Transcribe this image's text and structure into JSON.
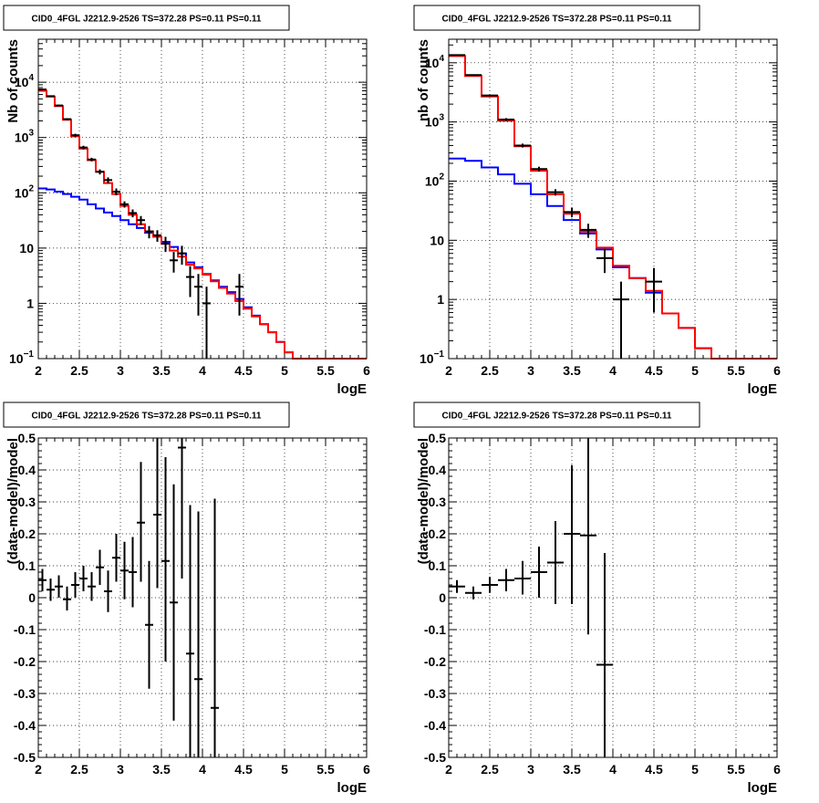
{
  "chart_data": [
    {
      "type": "step-line+errorbar",
      "title": "CID0_4FGL J2212.9-2526 TS=372.28 PS=0.11 PS=0.11",
      "xlabel": "logE",
      "ylabel": "Nb of counts",
      "xlim": [
        2,
        6
      ],
      "ylim": [
        0.1,
        60000
      ],
      "yscale": "log",
      "grid": true,
      "xticks": [
        "2",
        "2.5",
        "3",
        "3.5",
        "4",
        "4.5",
        "5",
        "5.5",
        "6"
      ],
      "yticks": [
        {
          "v": 0.1,
          "label": "10",
          "sup": "−1"
        },
        {
          "v": 1,
          "label": "1"
        },
        {
          "v": 10,
          "label": "10"
        },
        {
          "v": 100,
          "label": "10",
          "sup": "2"
        },
        {
          "v": 1000,
          "label": "10",
          "sup": "3"
        },
        {
          "v": 10000,
          "label": "10",
          "sup": "4"
        }
      ],
      "series": [
        {
          "kind": "step",
          "color": "#0000ff",
          "edges": [
            2.0,
            2.1,
            2.2,
            2.3,
            2.4,
            2.5,
            2.6,
            2.7,
            2.8,
            2.9,
            3.0,
            3.1,
            3.2,
            3.3,
            3.4,
            3.5,
            3.6,
            3.7,
            3.8,
            3.9,
            4.0,
            4.1,
            4.2,
            4.3,
            4.4,
            4.5,
            4.6,
            4.7,
            4.8,
            4.9,
            5.0,
            5.1,
            6.0
          ],
          "values": [
            120,
            115,
            105,
            95,
            85,
            75,
            62,
            52,
            44,
            38,
            32,
            27,
            23,
            19,
            16,
            13,
            10.5,
            8,
            5.5,
            4.5,
            3.4,
            2.6,
            2.0,
            1.6,
            1.2,
            0.85,
            0.6,
            0.42,
            0.3,
            0.2,
            0.13,
            0.1
          ]
        },
        {
          "kind": "step",
          "color": "#ff0000",
          "edges": [
            2.0,
            2.1,
            2.2,
            2.3,
            2.4,
            2.5,
            2.6,
            2.7,
            2.8,
            2.9,
            3.0,
            3.1,
            3.2,
            3.3,
            3.4,
            3.5,
            3.6,
            3.7,
            3.8,
            3.9,
            4.0,
            4.1,
            4.2,
            4.3,
            4.4,
            4.5,
            4.6,
            4.7,
            4.8,
            4.9,
            5.0,
            5.1,
            6.0
          ],
          "values": [
            7000,
            5500,
            3700,
            2100,
            1050,
            630,
            390,
            240,
            150,
            95,
            58,
            40,
            27,
            20,
            16,
            12,
            9,
            7,
            5,
            4.3,
            3.3,
            2.5,
            1.9,
            1.5,
            1.1,
            0.8,
            0.58,
            0.42,
            0.3,
            0.2,
            0.13,
            0.1
          ]
        },
        {
          "kind": "errorbar",
          "color": "#000000",
          "points": [
            {
              "x": 2.05,
              "y": 7400,
              "xe": 0.05,
              "lo": 7250,
              "hi": 7550
            },
            {
              "x": 2.15,
              "y": 5600,
              "xe": 0.05,
              "lo": 5450,
              "hi": 5750
            },
            {
              "x": 2.25,
              "y": 3800,
              "xe": 0.05,
              "lo": 3680,
              "hi": 3920
            },
            {
              "x": 2.35,
              "y": 2150,
              "xe": 0.05,
              "lo": 2060,
              "hi": 2240
            },
            {
              "x": 2.45,
              "y": 1100,
              "xe": 0.05,
              "lo": 1030,
              "hi": 1170
            },
            {
              "x": 2.55,
              "y": 660,
              "xe": 0.05,
              "lo": 610,
              "hi": 710
            },
            {
              "x": 2.65,
              "y": 400,
              "xe": 0.05,
              "lo": 370,
              "hi": 430
            },
            {
              "x": 2.75,
              "y": 240,
              "xe": 0.05,
              "lo": 215,
              "hi": 265
            },
            {
              "x": 2.85,
              "y": 170,
              "xe": 0.05,
              "lo": 150,
              "hi": 190
            },
            {
              "x": 2.95,
              "y": 105,
              "xe": 0.05,
              "lo": 90,
              "hi": 120
            },
            {
              "x": 3.05,
              "y": 62,
              "xe": 0.05,
              "lo": 54,
              "hi": 70
            },
            {
              "x": 3.15,
              "y": 43,
              "xe": 0.05,
              "lo": 36,
              "hi": 50
            },
            {
              "x": 3.25,
              "y": 32,
              "xe": 0.05,
              "lo": 26,
              "hi": 38
            },
            {
              "x": 3.35,
              "y": 20,
              "xe": 0.05,
              "lo": 15,
              "hi": 25
            },
            {
              "x": 3.45,
              "y": 17,
              "xe": 0.05,
              "lo": 13,
              "hi": 21
            },
            {
              "x": 3.55,
              "y": 12,
              "xe": 0.05,
              "lo": 8.5,
              "hi": 16
            },
            {
              "x": 3.65,
              "y": 6,
              "xe": 0.05,
              "lo": 3.6,
              "hi": 8.5
            },
            {
              "x": 3.75,
              "y": 8,
              "xe": 0.05,
              "lo": 5,
              "hi": 11
            },
            {
              "x": 3.85,
              "y": 3,
              "xe": 0.05,
              "lo": 1.3,
              "hi": 4.7
            },
            {
              "x": 3.95,
              "y": 2,
              "xe": 0.05,
              "lo": 0.6,
              "hi": 3.4
            },
            {
              "x": 4.05,
              "y": 1,
              "xe": 0.05,
              "lo": 0.1,
              "hi": 2.0
            },
            {
              "x": 4.45,
              "y": 2,
              "xe": 0.05,
              "lo": 0.6,
              "hi": 3.4
            }
          ]
        }
      ]
    },
    {
      "type": "step-line+errorbar",
      "title": "CID0_4FGL J2212.9-2526 TS=372.28 PS=0.11 PS=0.11",
      "xlabel": "logE",
      "ylabel": "nb of counts",
      "xlim": [
        2,
        6
      ],
      "ylim": [
        0.1,
        25000
      ],
      "yscale": "log",
      "grid": true,
      "xticks": [
        "2",
        "2.5",
        "3",
        "3.5",
        "4",
        "4.5",
        "5",
        "5.5",
        "6"
      ],
      "yticks": [
        {
          "v": 0.1,
          "label": "10",
          "sup": "−1"
        },
        {
          "v": 1,
          "label": "1"
        },
        {
          "v": 10,
          "label": "10"
        },
        {
          "v": 100,
          "label": "10",
          "sup": "2"
        },
        {
          "v": 1000,
          "label": "10",
          "sup": "3"
        },
        {
          "v": 10000,
          "label": "10",
          "sup": "4"
        }
      ],
      "series": [
        {
          "kind": "step",
          "color": "#0000ff",
          "edges": [
            2.0,
            2.2,
            2.4,
            2.6,
            2.8,
            3.0,
            3.2,
            3.4,
            3.6,
            3.8,
            4.0,
            4.2,
            4.4,
            4.6,
            4.8,
            5.0,
            5.2,
            6.0
          ],
          "values": [
            240,
            220,
            170,
            130,
            90,
            60,
            38,
            22,
            13,
            7,
            3.5,
            2.3,
            1.3,
            0.58,
            0.33,
            0.15,
            0.1
          ]
        },
        {
          "kind": "step",
          "color": "#ff0000",
          "edges": [
            2.0,
            2.2,
            2.4,
            2.6,
            2.8,
            3.0,
            3.2,
            3.4,
            3.6,
            3.8,
            4.0,
            4.2,
            4.4,
            4.6,
            4.8,
            5.0,
            5.2,
            6.0
          ],
          "values": [
            13000,
            6000,
            2700,
            1050,
            390,
            150,
            60,
            28,
            14,
            7.5,
            3.7,
            2.3,
            1.4,
            0.58,
            0.33,
            0.15,
            0.1
          ]
        },
        {
          "kind": "errorbar",
          "color": "#000000",
          "points": [
            {
              "x": 2.1,
              "y": 13500,
              "xe": 0.1,
              "lo": 13300,
              "hi": 13700
            },
            {
              "x": 2.3,
              "y": 6200,
              "xe": 0.1,
              "lo": 6050,
              "hi": 6350
            },
            {
              "x": 2.5,
              "y": 2800,
              "xe": 0.1,
              "lo": 2700,
              "hi": 2900
            },
            {
              "x": 2.7,
              "y": 1100,
              "xe": 0.1,
              "lo": 1040,
              "hi": 1160
            },
            {
              "x": 2.9,
              "y": 400,
              "xe": 0.1,
              "lo": 370,
              "hi": 430
            },
            {
              "x": 3.1,
              "y": 160,
              "xe": 0.1,
              "lo": 145,
              "hi": 175
            },
            {
              "x": 3.3,
              "y": 65,
              "xe": 0.1,
              "lo": 57,
              "hi": 73
            },
            {
              "x": 3.5,
              "y": 30,
              "xe": 0.1,
              "lo": 24.5,
              "hi": 35.5
            },
            {
              "x": 3.7,
              "y": 15,
              "xe": 0.1,
              "lo": 11,
              "hi": 19
            },
            {
              "x": 3.9,
              "y": 5,
              "xe": 0.1,
              "lo": 2.8,
              "hi": 7.2
            },
            {
              "x": 4.1,
              "y": 1,
              "xe": 0.1,
              "lo": 0.1,
              "hi": 2.0
            },
            {
              "x": 4.5,
              "y": 2,
              "xe": 0.1,
              "lo": 0.6,
              "hi": 3.4
            }
          ]
        }
      ]
    },
    {
      "type": "errorbar",
      "title": "CID0_4FGL J2212.9-2526 TS=372.28 PS=0.11 PS=0.11",
      "xlabel": "logE",
      "ylabel": "(data-model)/model",
      "xlim": [
        2,
        6
      ],
      "ylim": [
        -0.5,
        0.5
      ],
      "grid": true,
      "xticks": [
        "2",
        "2.5",
        "3",
        "3.5",
        "4",
        "4.5",
        "5",
        "5.5",
        "6"
      ],
      "yticks": [
        "-0.5",
        "-0.4",
        "-0.3",
        "-0.2",
        "-0.1",
        "0",
        "0.1",
        "0.2",
        "0.3",
        "0.4",
        "0.5"
      ],
      "series": [
        {
          "kind": "errorbar",
          "color": "#000000",
          "points": [
            {
              "x": 2.05,
              "y": 0.055,
              "xe": 0.05,
              "lo": 0.02,
              "hi": 0.09
            },
            {
              "x": 2.15,
              "y": 0.025,
              "xe": 0.05,
              "lo": -0.01,
              "hi": 0.06
            },
            {
              "x": 2.25,
              "y": 0.035,
              "xe": 0.05,
              "lo": 0.0,
              "hi": 0.07
            },
            {
              "x": 2.35,
              "y": -0.005,
              "xe": 0.05,
              "lo": -0.04,
              "hi": 0.035
            },
            {
              "x": 2.45,
              "y": 0.04,
              "xe": 0.05,
              "lo": 0.0,
              "hi": 0.08
            },
            {
              "x": 2.55,
              "y": 0.06,
              "xe": 0.05,
              "lo": 0.02,
              "hi": 0.1
            },
            {
              "x": 2.65,
              "y": 0.035,
              "xe": 0.05,
              "lo": -0.01,
              "hi": 0.08
            },
            {
              "x": 2.75,
              "y": 0.095,
              "xe": 0.05,
              "lo": 0.04,
              "hi": 0.15
            },
            {
              "x": 2.85,
              "y": 0.02,
              "xe": 0.05,
              "lo": -0.045,
              "hi": 0.085
            },
            {
              "x": 2.95,
              "y": 0.125,
              "xe": 0.05,
              "lo": 0.05,
              "hi": 0.2
            },
            {
              "x": 3.05,
              "y": 0.085,
              "xe": 0.05,
              "lo": -0.005,
              "hi": 0.175
            },
            {
              "x": 3.15,
              "y": 0.08,
              "xe": 0.05,
              "lo": -0.03,
              "hi": 0.19
            },
            {
              "x": 3.25,
              "y": 0.235,
              "xe": 0.05,
              "lo": 0.05,
              "hi": 0.425
            },
            {
              "x": 3.35,
              "y": -0.085,
              "xe": 0.05,
              "lo": -0.285,
              "hi": 0.115
            },
            {
              "x": 3.45,
              "y": 0.26,
              "xe": 0.05,
              "lo": 0.03,
              "hi": 0.5
            },
            {
              "x": 3.55,
              "y": 0.115,
              "xe": 0.05,
              "lo": -0.2,
              "hi": 0.44
            },
            {
              "x": 3.65,
              "y": -0.015,
              "xe": 0.05,
              "lo": -0.385,
              "hi": 0.355
            },
            {
              "x": 3.75,
              "y": 0.47,
              "xe": 0.05,
              "lo": 0.06,
              "hi": 0.5
            },
            {
              "x": 3.85,
              "y": -0.175,
              "xe": 0.05,
              "lo": -0.5,
              "hi": 0.29
            },
            {
              "x": 3.95,
              "y": -0.255,
              "xe": 0.05,
              "lo": -0.5,
              "hi": 0.27
            },
            {
              "x": 4.15,
              "y": -0.345,
              "xe": 0.05,
              "lo": -0.5,
              "hi": 0.31
            }
          ]
        }
      ]
    },
    {
      "type": "errorbar",
      "title": "CID0_4FGL J2212.9-2526 TS=372.28 PS=0.11 PS=0.11",
      "xlabel": "logE",
      "ylabel": "(data-model)/model",
      "xlim": [
        2,
        6
      ],
      "ylim": [
        -0.5,
        0.5
      ],
      "grid": true,
      "xticks": [
        "2",
        "2.5",
        "3",
        "3.5",
        "4",
        "4.5",
        "5",
        "5.5",
        "6"
      ],
      "yticks": [
        "-0.5",
        "-0.4",
        "-0.3",
        "-0.2",
        "-0.1",
        "0",
        "0.1",
        "0.2",
        "0.3",
        "0.4",
        "0.5"
      ],
      "series": [
        {
          "kind": "errorbar",
          "color": "#000000",
          "points": [
            {
              "x": 2.1,
              "y": 0.035,
              "xe": 0.1,
              "lo": 0.015,
              "hi": 0.055
            },
            {
              "x": 2.3,
              "y": 0.015,
              "xe": 0.1,
              "lo": -0.005,
              "hi": 0.035
            },
            {
              "x": 2.5,
              "y": 0.04,
              "xe": 0.1,
              "lo": 0.015,
              "hi": 0.065
            },
            {
              "x": 2.7,
              "y": 0.055,
              "xe": 0.1,
              "lo": 0.02,
              "hi": 0.09
            },
            {
              "x": 2.9,
              "y": 0.06,
              "xe": 0.1,
              "lo": 0.01,
              "hi": 0.115
            },
            {
              "x": 3.1,
              "y": 0.08,
              "xe": 0.1,
              "lo": 0.0,
              "hi": 0.16
            },
            {
              "x": 3.3,
              "y": 0.11,
              "xe": 0.1,
              "lo": -0.02,
              "hi": 0.24
            },
            {
              "x": 3.5,
              "y": 0.2,
              "xe": 0.1,
              "lo": -0.02,
              "hi": 0.415
            },
            {
              "x": 3.7,
              "y": 0.195,
              "xe": 0.1,
              "lo": -0.115,
              "hi": 0.5
            },
            {
              "x": 3.9,
              "y": -0.21,
              "xe": 0.1,
              "lo": -0.5,
              "hi": 0.14
            }
          ]
        }
      ]
    }
  ]
}
